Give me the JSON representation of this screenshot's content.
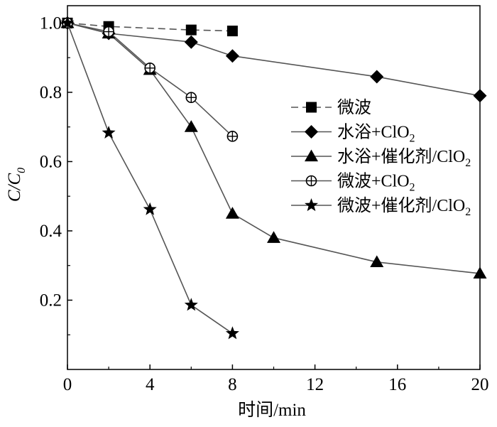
{
  "chart_data": {
    "type": "line",
    "xlabel": "时间/min",
    "ylabel": {
      "main": "C/C",
      "sub": "0"
    },
    "xlim": [
      0,
      20
    ],
    "ylim": [
      0,
      1.05
    ],
    "xticks": [
      "0",
      "4",
      "8",
      "12",
      "16",
      "20"
    ],
    "yticks": [
      "0.2",
      "0.4",
      "0.6",
      "0.8",
      "1.0"
    ],
    "grid": false,
    "legend_position": "right",
    "series": [
      {
        "name": "微波",
        "name_sub": "",
        "marker": "square",
        "dash": true,
        "x": [
          0,
          2,
          6,
          8
        ],
        "y": [
          1.0,
          0.99,
          0.98,
          0.977
        ]
      },
      {
        "name": "水浴+ClO",
        "name_sub": "2",
        "marker": "diamond",
        "dash": false,
        "x": [
          0,
          2,
          6,
          8,
          15,
          20
        ],
        "y": [
          1.0,
          0.97,
          0.945,
          0.905,
          0.845,
          0.79
        ]
      },
      {
        "name": "水浴+催化剂/ClO",
        "name_sub": "2",
        "marker": "triangle",
        "dash": false,
        "x": [
          0,
          2,
          4,
          6,
          8,
          10,
          15,
          20
        ],
        "y": [
          1.0,
          0.97,
          0.865,
          0.7,
          0.45,
          0.38,
          0.31,
          0.277
        ]
      },
      {
        "name": "微波+ClO",
        "name_sub": "2",
        "marker": "circle-plus",
        "dash": false,
        "x": [
          0,
          2,
          4,
          6,
          8
        ],
        "y": [
          1.0,
          0.975,
          0.87,
          0.785,
          0.673
        ]
      },
      {
        "name": "微波+催化剂/ClO",
        "name_sub": "2",
        "marker": "star",
        "dash": false,
        "x": [
          0,
          2,
          4,
          6,
          8
        ],
        "y": [
          1.0,
          0.683,
          0.462,
          0.186,
          0.104
        ]
      }
    ]
  }
}
